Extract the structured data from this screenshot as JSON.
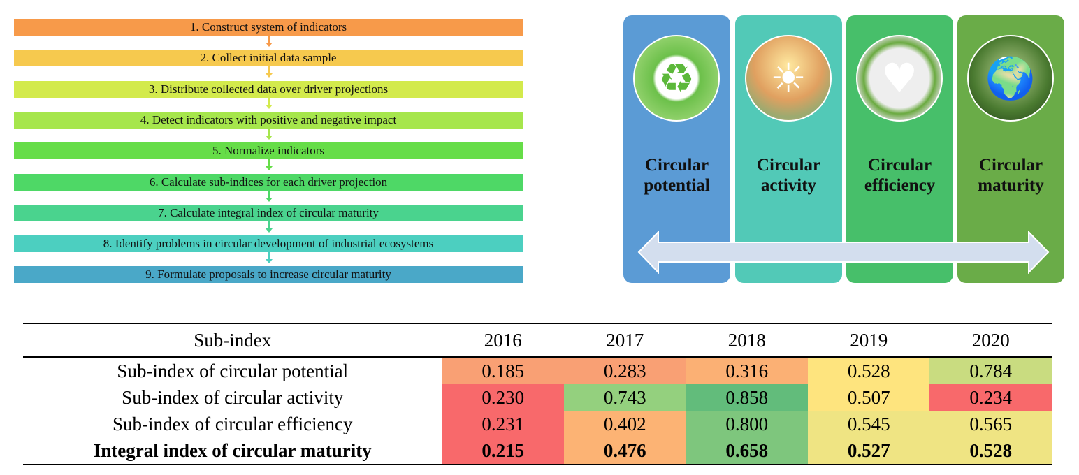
{
  "steps": [
    {
      "label": "1. Construct system of indicators",
      "color": "#f79a4a"
    },
    {
      "label": "2. Collect initial data sample",
      "color": "#f6c94e"
    },
    {
      "label": "3. Distribute collected data over driver projections",
      "color": "#d3ea4c"
    },
    {
      "label": "4. Detect indicators with positive and negative impact",
      "color": "#a6e64c"
    },
    {
      "label": "5. Normalize indicators",
      "color": "#66dd48"
    },
    {
      "label": "6. Calculate sub-indices for each driver projection",
      "color": "#4ed866"
    },
    {
      "label": "7. Calculate integral index of circular maturity",
      "color": "#4ad38e"
    },
    {
      "label": "8. Identify problems in circular development of industrial ecosystems",
      "color": "#4ccfc0"
    },
    {
      "label": "9. Formulate proposals to increase circular maturity",
      "color": "#4aa8c8"
    }
  ],
  "panels": [
    {
      "title1": "Circular",
      "title2": "potential",
      "color": "#5b9bd5",
      "icon": "recycle-city-icon"
    },
    {
      "title1": "Circular",
      "title2": "activity",
      "color": "#52c9b7",
      "icon": "city-sun-icon"
    },
    {
      "title1": "Circular",
      "title2": "efficiency",
      "color": "#47bf6a",
      "icon": "circular-arrows-icon"
    },
    {
      "title1": "Circular",
      "title2": "maturity",
      "color": "#6aac48",
      "icon": "earth-arrows-icon"
    }
  ],
  "table": {
    "headers": [
      "Sub-index",
      "2016",
      "2017",
      "2018",
      "2019",
      "2020"
    ],
    "rows": [
      {
        "label": "Sub-index of circular potential",
        "values": [
          "0.185",
          "0.283",
          "0.316",
          "0.528",
          "0.784"
        ],
        "colors": [
          "#f9a074",
          "#f9a074",
          "#fbb074",
          "#fee47e",
          "#c9dc80"
        ]
      },
      {
        "label": "Sub-index of circular activity",
        "values": [
          "0.230",
          "0.743",
          "0.858",
          "0.507",
          "0.234"
        ],
        "colors": [
          "#f8696b",
          "#94d07e",
          "#62bc7b",
          "#fee47e",
          "#f8696b"
        ]
      },
      {
        "label": "Sub-index of circular efficiency",
        "values": [
          "0.231",
          "0.402",
          "0.800",
          "0.545",
          "0.565"
        ],
        "colors": [
          "#f8696b",
          "#fcb374",
          "#7ec67d",
          "#efe483",
          "#efe483"
        ]
      },
      {
        "label": "Integral index of circular maturity",
        "values": [
          "0.215",
          "0.476",
          "0.658",
          "0.527",
          "0.528"
        ],
        "colors": [
          "#f8696b",
          "#fcb374",
          "#7ec67d",
          "#efe483",
          "#efe483"
        ]
      }
    ]
  }
}
